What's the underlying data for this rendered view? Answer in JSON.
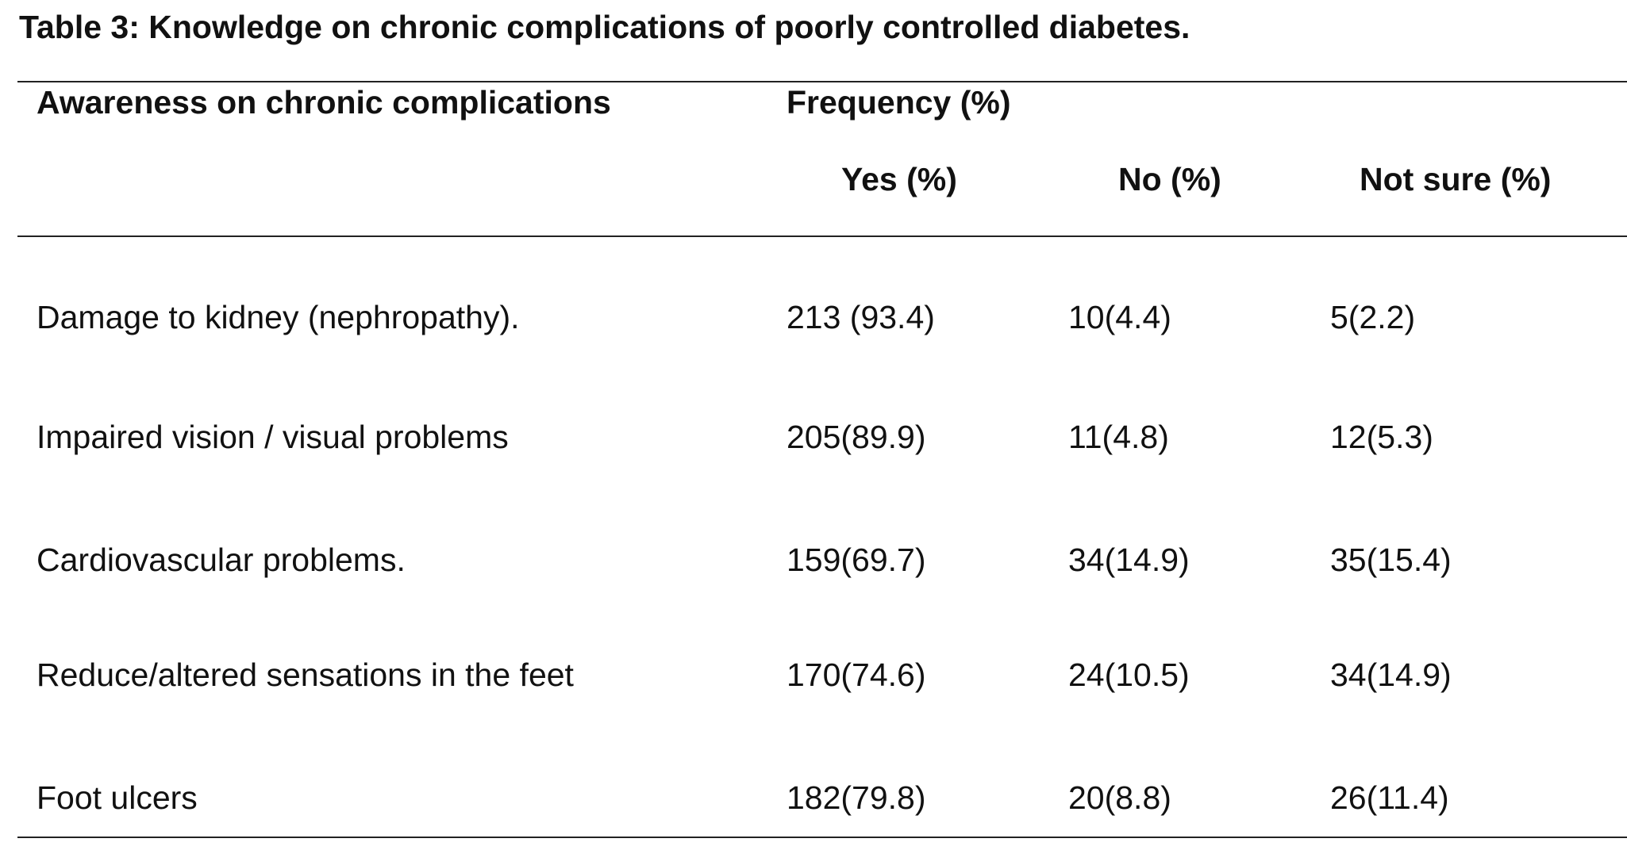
{
  "caption": "Table 3: Knowledge on chronic complications of poorly controlled diabetes.",
  "table": {
    "header": {
      "row_label": "Awareness on chronic complications",
      "group_label": "Frequency (%)",
      "columns": [
        "Yes (%)",
        "No (%)",
        "Not sure (%)"
      ]
    },
    "rows": [
      {
        "label": "Damage to kidney (nephropathy).",
        "yes": "213 (93.4)",
        "no": "10(4.4)",
        "not_sure": "5(2.2)"
      },
      {
        "label": "Impaired vision / visual problems",
        "yes": "205(89.9)",
        "no": "11(4.8)",
        "not_sure": "12(5.3)"
      },
      {
        "label": "Cardiovascular problems.",
        "yes": "159(69.7)",
        "no": "34(14.9)",
        "not_sure": "35(15.4)"
      },
      {
        "label": "Reduce/altered sensations in the feet",
        "yes": "170(74.6)",
        "no": "24(10.5)",
        "not_sure": "34(14.9)"
      },
      {
        "label": "Foot ulcers",
        "yes": "182(79.8)",
        "no": "20(8.8)",
        "not_sure": "26(11.4)"
      }
    ]
  }
}
